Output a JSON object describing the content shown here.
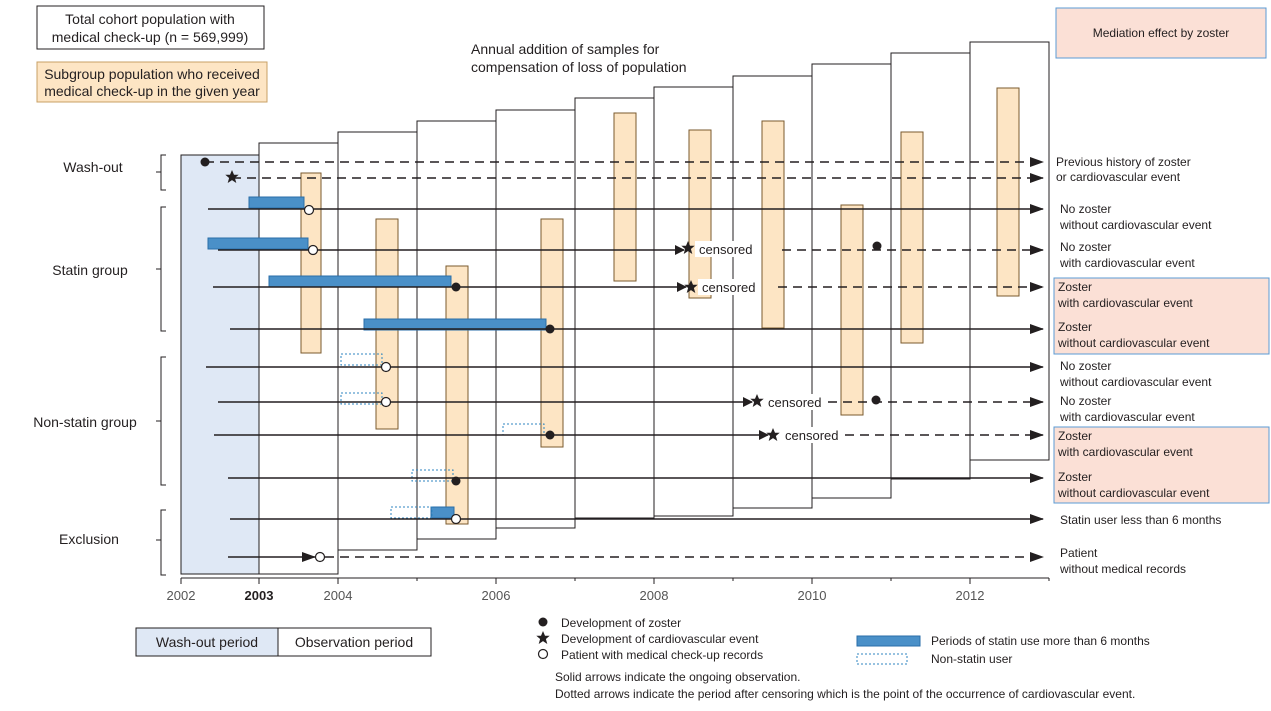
{
  "boxes": {
    "total_cohort": [
      "Total cohort population with",
      "medical check-up (n = 569,999)"
    ],
    "subgroup": [
      "Subgroup population who received",
      "medical check-up in the given year"
    ],
    "mediation": "Mediation effect by zoster",
    "annual_addition": [
      "Annual addition of samples for",
      "compensation of loss of population"
    ]
  },
  "groups": {
    "washout": "Wash-out",
    "statin": "Statin group",
    "nonstatin": "Non-statin group",
    "exclusion": "Exclusion"
  },
  "outcomes": {
    "r0": [
      "Previous history of zoster",
      "or cardiovascular event"
    ],
    "r2": [
      "No zoster",
      "without cardiovascular event"
    ],
    "r3": [
      "No zoster",
      "with cardiovascular event"
    ],
    "r4": [
      "Zoster",
      "with cardiovascular event"
    ],
    "r5": [
      "Zoster",
      "without cardiovascular event"
    ],
    "r6": [
      "No zoster",
      "without cardiovascular event"
    ],
    "r7": [
      "No zoster",
      "with cardiovascular event"
    ],
    "r8": [
      "Zoster",
      "with cardiovascular event"
    ],
    "r9": [
      "Zoster",
      "without cardiovascular event"
    ],
    "r10": [
      "Statin user less than 6 months"
    ],
    "r11": [
      "Patient",
      "without medical records"
    ]
  },
  "censored_label": "censored",
  "axis": {
    "years": [
      "2002",
      "2003",
      "2004",
      "2006",
      "2008",
      "2010",
      "2012"
    ]
  },
  "periods": {
    "washout": "Wash-out period",
    "observation": "Observation period"
  },
  "legend": {
    "zoster": "Development of zoster",
    "cv_event": "Development of cardiovascular event",
    "checkup": "Patient with medical check-up records",
    "statin_period": "Periods of statin use more than 6 months",
    "nonstatin": "Non-statin user",
    "note_solid": "Solid arrows indicate the ongoing observation.",
    "note_dotted": "Dotted arrows indicate the period after censoring which is the point of the occurrence of cardiovascular event."
  },
  "colors": {
    "washout_fill": "#dfe8f5",
    "subgroup_fill": "#fde5c4",
    "subgroup_stroke": "#c8a064",
    "mediation_fill": "#fbe0d6",
    "mediation_stroke": "#5b9bd5",
    "statin_bar": "#4a90c8",
    "nonstatin_stroke": "#2f86c0",
    "line": "#231f20"
  }
}
